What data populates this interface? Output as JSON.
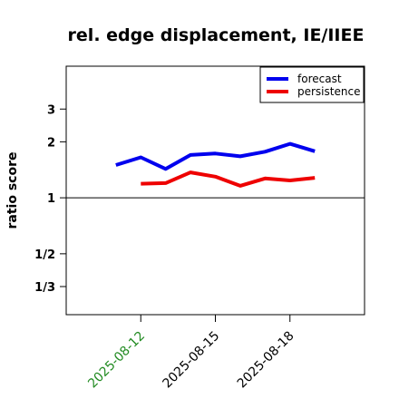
{
  "chart_data": {
    "type": "line",
    "title": "rel. edge displacement, IE/IIEE",
    "xlabel": "",
    "ylabel": "ratio score",
    "y_scale": "log",
    "ylim": [
      0.2353,
      5.1
    ],
    "yticks": [
      {
        "value": 3,
        "label": "3"
      },
      {
        "value": 2,
        "label": "2"
      },
      {
        "value": 1,
        "label": "1"
      },
      {
        "value": 0.5,
        "label": "1/2"
      },
      {
        "value": 0.3333,
        "label": "1/3"
      }
    ],
    "xlim": [
      "2025-08-09",
      "2025-08-21"
    ],
    "xticks": [
      {
        "value": "2025-08-12",
        "label": "2025-08-12",
        "color": "#228B22"
      },
      {
        "value": "2025-08-15",
        "label": "2025-08-15",
        "color": "#000000"
      },
      {
        "value": "2025-08-18",
        "label": "2025-08-18",
        "color": "#000000"
      }
    ],
    "reference_line": 1,
    "legend_position": "top-right",
    "series": [
      {
        "name": "forecast",
        "color": "#0000ee",
        "x": [
          "2025-08-11",
          "2025-08-12",
          "2025-08-13",
          "2025-08-14",
          "2025-08-15",
          "2025-08-16",
          "2025-08-17",
          "2025-08-18",
          "2025-08-19"
        ],
        "values": [
          1.5,
          1.65,
          1.43,
          1.7,
          1.73,
          1.67,
          1.77,
          1.95,
          1.78
        ]
      },
      {
        "name": "persistence",
        "color": "#ee0000",
        "x": [
          "2025-08-12",
          "2025-08-13",
          "2025-08-14",
          "2025-08-15",
          "2025-08-16",
          "2025-08-17",
          "2025-08-18",
          "2025-08-19"
        ],
        "values": [
          1.19,
          1.2,
          1.37,
          1.3,
          1.16,
          1.27,
          1.24,
          1.28
        ]
      }
    ]
  }
}
